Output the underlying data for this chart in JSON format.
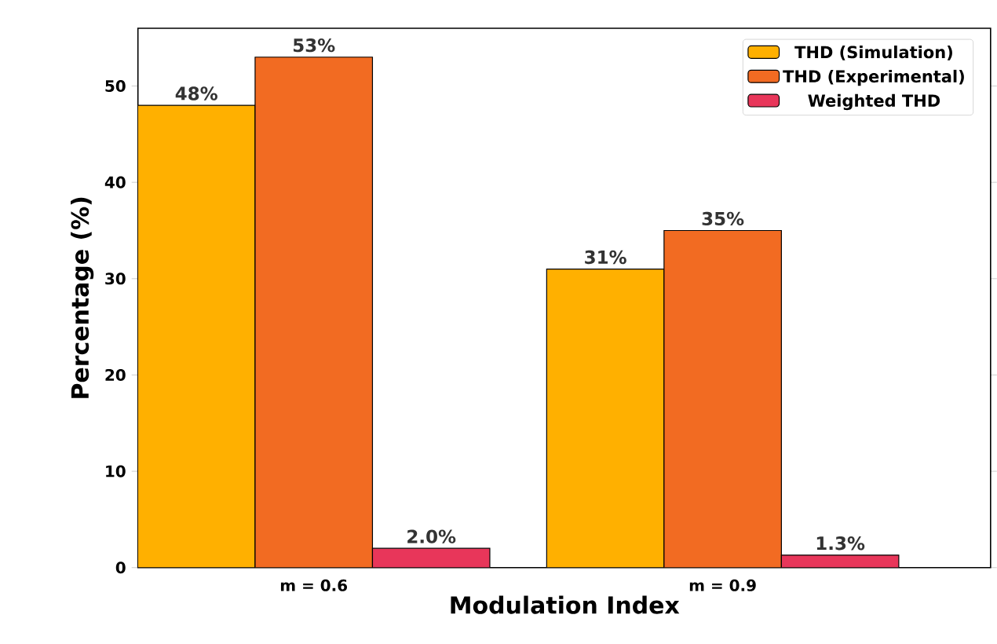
{
  "chart_data": {
    "type": "bar",
    "xlabel": "Modulation Index",
    "ylabel": "Percentage (%)",
    "categories": [
      "m = 0.6",
      "m = 0.9"
    ],
    "series": [
      {
        "name": "THD (Simulation)",
        "color": "#ffb000",
        "values": [
          48,
          31
        ],
        "value_labels": [
          "48%",
          "31%"
        ]
      },
      {
        "name": "THD (Experimental)",
        "color": "#f26b22",
        "values": [
          53,
          35
        ],
        "value_labels": [
          "53%",
          "35%"
        ]
      },
      {
        "name": "Weighted THD",
        "color": "#e8365a",
        "values": [
          2.0,
          1.3
        ],
        "value_labels": [
          "2.0%",
          "1.3%"
        ]
      }
    ],
    "ylim": [
      0,
      56
    ],
    "yticks": [
      0,
      10,
      20,
      30,
      40,
      50
    ],
    "legend": "top right"
  }
}
